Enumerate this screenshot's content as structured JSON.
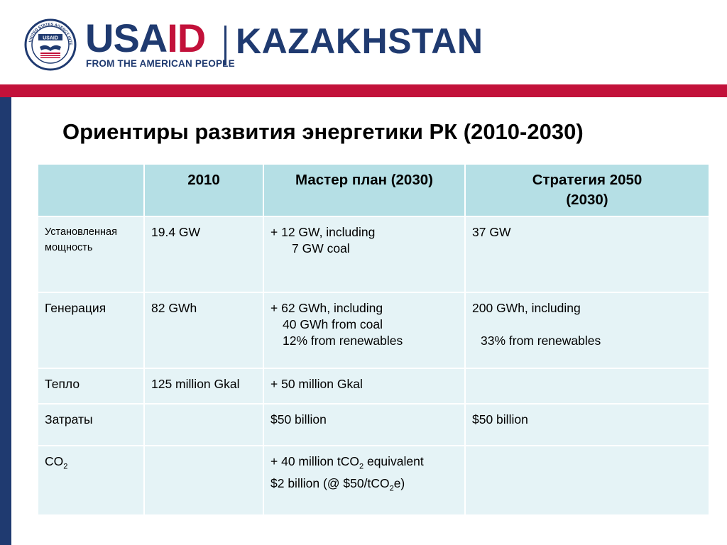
{
  "header": {
    "brand_left": "USA",
    "brand_right": "ID",
    "tagline": "FROM THE AMERICAN PEOPLE",
    "country": "KAZAKHSTAN",
    "seal_text": "UNITED STATES AGENCY INTERNATIONAL DEVELOPMENT",
    "seal_name": "USAID"
  },
  "colors": {
    "navy": "#1f3a70",
    "red": "#c2113a",
    "header_cell": "#b5dfe5",
    "body_cell": "#e5f3f6"
  },
  "title": "Ориентиры развития энергетики РК (2010-2030)",
  "table": {
    "headers": [
      "",
      "2010",
      "Мастер план (2030)",
      "Стратегия 2050",
      "(2030)"
    ],
    "rows": [
      {
        "label": "Установленная мощность",
        "c2010": "19.4 GW",
        "master_line1": "+ 12 GW, including",
        "master_line2": "7 GW coal",
        "strategy_line1": "37 GW"
      },
      {
        "label": "Генерация",
        "c2010": "82 GWh",
        "master_line1": "+ 62 GWh, including",
        "master_line2": "40 GWh from coal",
        "master_line3": "12% from renewables",
        "strategy_line1": "200 GWh, including",
        "strategy_line2": "33% from renewables"
      },
      {
        "label": "Тепло",
        "c2010": "125 million Gkal",
        "master_line1": "+ 50 million Gkal"
      },
      {
        "label": "Затраты",
        "master_line1": "$50 billion",
        "strategy_line1": "$50 billion"
      },
      {
        "label_main": "CO",
        "label_sub": "2",
        "master_l1_a": "+ 40 million tCO",
        "master_l1_sub": "2",
        "master_l1_b": " equivalent",
        "master_l2_a": "$2 billion (@ $50/tCO",
        "master_l2_sub": "2",
        "master_l2_b": "e)"
      }
    ]
  }
}
